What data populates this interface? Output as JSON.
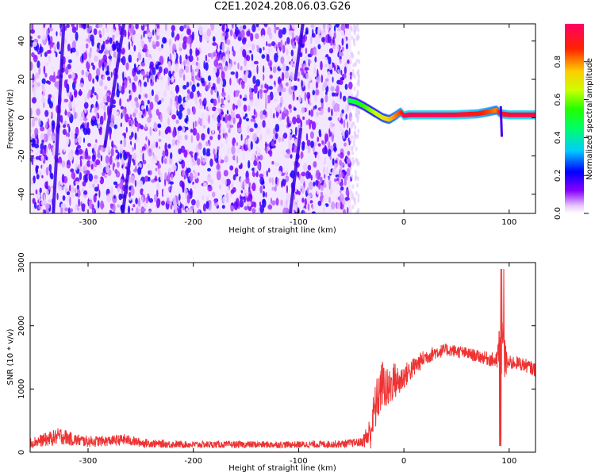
{
  "title": "C2E1.2024.208.06.03.G26",
  "chart_data": [
    {
      "type": "heatmap",
      "xlabel": "Height of straight line (km)",
      "ylabel": "Frequency (Hz)",
      "xlim": [
        -355,
        125
      ],
      "ylim": [
        -50,
        49
      ],
      "xticks": [
        -300,
        -200,
        -100,
        0,
        100
      ],
      "yticks": [
        -40,
        -20,
        0,
        20,
        40
      ],
      "xtick_labels": [
        "-300",
        "-200",
        "-100",
        "0",
        "100"
      ],
      "ytick_labels": [
        "-40",
        "-20",
        "0",
        "20",
        "40"
      ],
      "noise_region_x": [
        -355,
        -50
      ],
      "streaks": [
        {
          "x": [
            -333,
            -323
          ],
          "y": [
            -50,
            49
          ]
        },
        {
          "x": [
            -284,
            -266
          ],
          "y": [
            -15,
            49
          ]
        },
        {
          "x": [
            -267,
            -260
          ],
          "y": [
            -50,
            -20
          ]
        },
        {
          "x": [
            -108,
            -98
          ],
          "y": [
            -50,
            -6
          ]
        },
        {
          "x": [
            -103,
            -96
          ],
          "y": [
            20,
            49
          ]
        }
      ],
      "signal_ridge": {
        "x": [
          -52,
          -45,
          -38,
          -32,
          -26,
          -20,
          -14,
          -8,
          -3,
          0,
          5,
          15,
          30,
          50,
          70,
          80,
          88,
          92,
          100,
          110,
          125
        ],
        "y": [
          9,
          8,
          6,
          4,
          2,
          0,
          -1,
          1,
          3,
          1,
          1.5,
          1.5,
          1.5,
          1.5,
          2,
          3,
          4,
          2,
          1.5,
          1.5,
          1.5
        ],
        "amplitude": [
          0.45,
          0.5,
          0.55,
          0.6,
          0.65,
          0.7,
          0.75,
          0.8,
          0.85,
          0.95,
          0.98,
          0.98,
          0.98,
          0.95,
          0.9,
          0.85,
          0.8,
          0.9,
          0.95,
          0.95,
          0.95
        ]
      },
      "colorbar": {
        "label": "Normalized spectral amplitude",
        "range": [
          0.0,
          1.0
        ],
        "ticks": [
          0.0,
          0.2,
          0.4,
          0.6,
          0.8
        ],
        "tick_labels": [
          "0.0",
          "0.2",
          "0.4",
          "0.6",
          "0.8"
        ]
      }
    },
    {
      "type": "line",
      "xlabel": "Height of straight line (km)",
      "ylabel": "SNR (10 * v/v)",
      "xlim": [
        -355,
        125
      ],
      "ylim": [
        0,
        3000
      ],
      "xticks": [
        -300,
        -200,
        -100,
        0,
        100
      ],
      "yticks": [
        0,
        1000,
        2000,
        3000
      ],
      "xtick_labels": [
        "-300",
        "-200",
        "-100",
        "0",
        "100"
      ],
      "ytick_labels": [
        "0",
        "1000",
        "2000",
        "3000"
      ],
      "color": "#ee3333",
      "series": [
        {
          "x": [
            -355,
            -340,
            -325,
            -315,
            -300,
            -280,
            -265,
            -250,
            -230,
            -200,
            -150,
            -100,
            -60,
            -40,
            -32,
            -28,
            -24,
            -20,
            -15,
            -10,
            -5,
            0,
            10,
            20,
            30,
            40,
            50,
            60,
            70,
            80,
            88,
            92,
            95,
            98,
            105,
            115,
            125
          ],
          "y": [
            150,
            200,
            260,
            200,
            170,
            180,
            200,
            150,
            130,
            120,
            120,
            120,
            130,
            160,
            300,
            650,
            900,
            1100,
            950,
            1150,
            1100,
            1200,
            1350,
            1500,
            1580,
            1620,
            1600,
            1560,
            1520,
            1480,
            1440,
            1700,
            1500,
            1400,
            1420,
            1380,
            1300
          ],
          "noise": [
            80,
            110,
            140,
            100,
            90,
            80,
            90,
            70,
            60,
            55,
            55,
            55,
            60,
            70,
            280,
            380,
            400,
            380,
            350,
            300,
            260,
            200,
            160,
            130,
            110,
            100,
            100,
            100,
            100,
            110,
            130,
            600,
            500,
            130,
            110,
            110,
            110
          ]
        }
      ]
    }
  ]
}
